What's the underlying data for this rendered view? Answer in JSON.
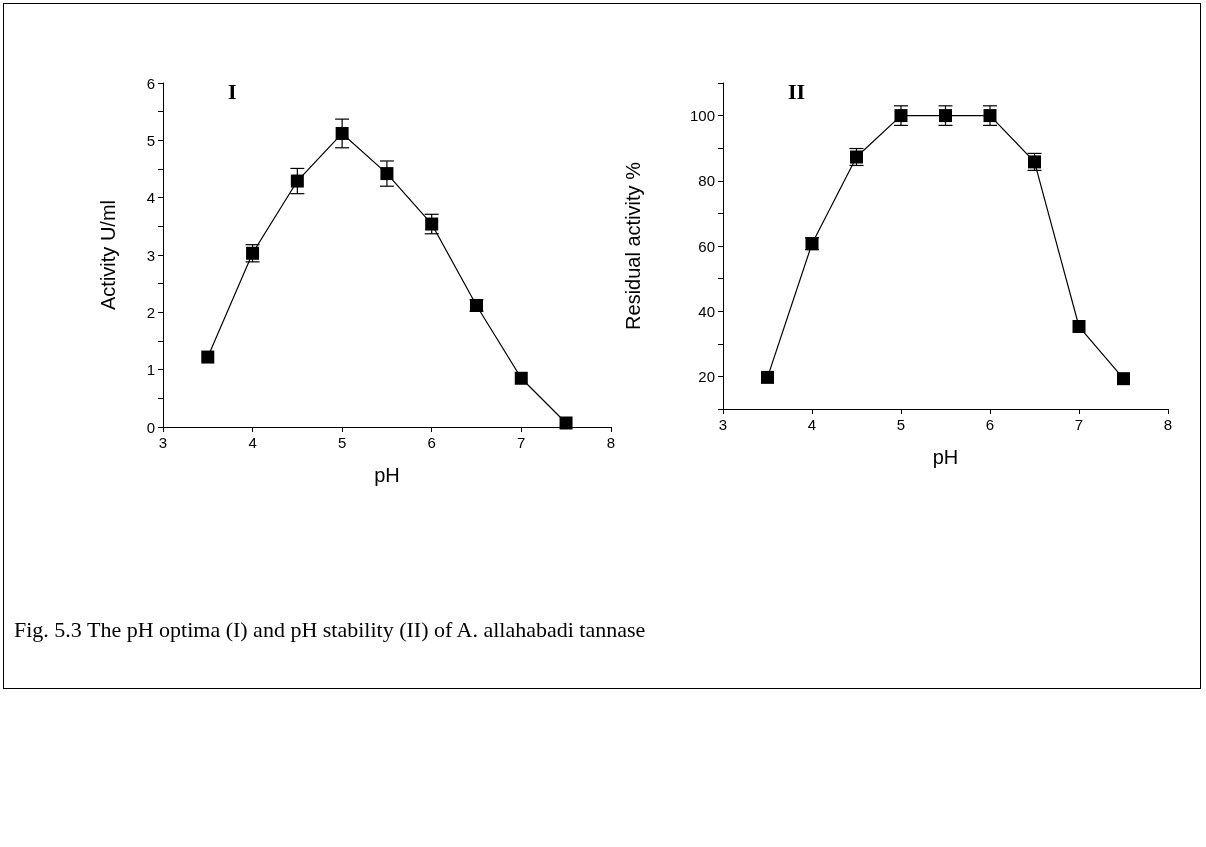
{
  "chart_data": [
    {
      "type": "line",
      "title": "I",
      "xlabel": "pH",
      "ylabel": "Activity U/ml",
      "x": [
        3.5,
        4,
        4.5,
        5,
        5.5,
        6,
        6.5,
        7,
        7.5
      ],
      "series": [
        {
          "color": "#000000",
          "values": [
            1.22,
            3.03,
            4.29,
            5.12,
            4.42,
            3.54,
            2.12,
            0.85,
            0.07
          ],
          "errors": [
            null,
            0.15,
            0.22,
            0.25,
            0.22,
            0.17,
            0.1,
            null,
            null
          ]
        }
      ],
      "xlim": [
        3,
        8
      ],
      "xticks": [
        3,
        4,
        5,
        6,
        7,
        8
      ],
      "ylim": [
        0,
        6
      ],
      "yticks": [
        0,
        {
          "value": 0.5,
          "label": null
        },
        1,
        {
          "value": 1.5,
          "label": null
        },
        2,
        {
          "value": 2.5,
          "label": null
        },
        3,
        {
          "value": 3.5,
          "label": null
        },
        4,
        {
          "value": 4.5,
          "label": null
        },
        5,
        {
          "value": 5.5,
          "label": null
        },
        6
      ],
      "marker": "square",
      "line_style": "solid",
      "grid": false,
      "annotations": [
        "Fig. 5.3 The pH optima (I) and pH stability (II) of A. allahabadi tannase"
      ]
    },
    {
      "type": "line",
      "title": "II",
      "xlabel": "pH",
      "ylabel": "Residual activity %",
      "x": [
        3.5,
        4,
        4.5,
        5,
        5.5,
        6,
        6.5,
        7,
        7.5
      ],
      "series": [
        {
          "color": "#000000",
          "values": [
            19.7,
            60.7,
            87.3,
            100,
            100,
            100,
            85.8,
            35.3,
            19.3
          ],
          "errors": [
            null,
            1.8,
            2.6,
            3,
            3,
            3,
            2.6,
            null,
            null
          ]
        }
      ],
      "xlim": [
        3,
        8
      ],
      "xticks": [
        3,
        4,
        5,
        6,
        7,
        8
      ],
      "ylim": [
        10,
        110
      ],
      "yticks": [
        {
          "value": 10,
          "label": null
        },
        20,
        {
          "value": 30,
          "label": null
        },
        40,
        {
          "value": 50,
          "label": null
        },
        60,
        {
          "value": 70,
          "label": null
        },
        80,
        {
          "value": 90,
          "label": null
        },
        100,
        {
          "value": 110,
          "label": null
        }
      ],
      "marker": "square",
      "line_style": "solid",
      "grid": false
    }
  ]
}
